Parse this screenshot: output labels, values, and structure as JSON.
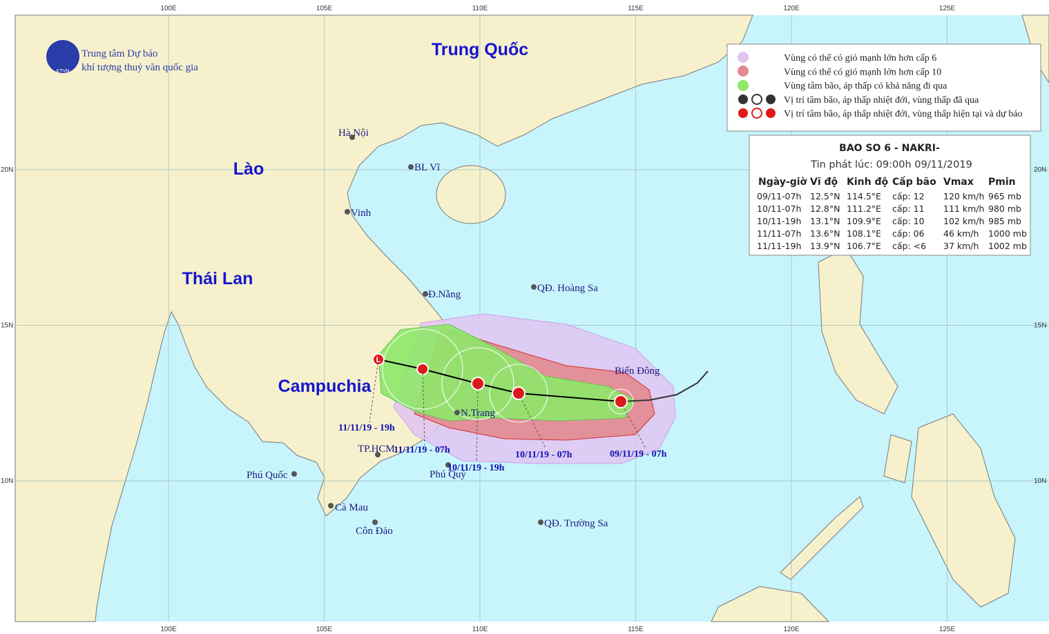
{
  "header": {
    "org_line1": "Trung tâm Dự báo",
    "org_line2": "khí tượng thuỷ văn quốc gia",
    "logo_text": "KTVN"
  },
  "grid": {
    "longitudes": [
      {
        "value": 100,
        "label": "100E"
      },
      {
        "value": 105,
        "label": "105E"
      },
      {
        "value": 110,
        "label": "110E"
      },
      {
        "value": 115,
        "label": "115E"
      },
      {
        "value": 120,
        "label": "120E"
      },
      {
        "value": 125,
        "label": "125E"
      }
    ],
    "latitudes": [
      {
        "value": 10,
        "label": "10N"
      },
      {
        "value": 15,
        "label": "15N"
      },
      {
        "value": 20,
        "label": "20N"
      }
    ]
  },
  "countries": [
    "Trung Quốc",
    "Lào",
    "Thái Lan",
    "Campuchia"
  ],
  "places": [
    "Hà Nội",
    "BL Vĩ",
    "Vinh",
    "Đ.Nẵng",
    "QĐ. Hoàng Sa",
    "N.Trang",
    "TP.HCM",
    "Phú Quốc",
    "Phú Quý",
    "Cà Mau",
    "Côn Đảo",
    "QĐ. Trường Sa",
    "Biển Đông"
  ],
  "track_labels": [
    "11/11/19 - 19h",
    "11/11/19 - 07h",
    "10/11/19 - 19h",
    "10/11/19 - 07h",
    "09/11/19 - 07h"
  ],
  "legend": [
    "Vùng có thể có gió mạnh lớn hơn cấp 6",
    "Vùng có thể có gió mạnh lớn hơn cấp 10",
    "Vùng tâm bão, áp thấp có khả năng đi qua",
    "Vị trí tâm bão, áp thấp nhiệt đới, vùng thấp đã qua",
    "Vị trí tâm bão, áp thấp nhiệt đới, vùng thấp hiện tại và dự báo"
  ],
  "bulletin": {
    "title": "BAO SO 6 - NAKRI-",
    "issued": "Tin phát lúc: 09:00h 09/11/2019",
    "columns": [
      "Ngày-giờ",
      "Vĩ độ",
      "Kinh độ",
      "Cấp bão",
      "Vmax",
      "Pmin"
    ],
    "rows": [
      [
        "09/11-07h",
        "12.5°N",
        "114.5°E",
        "cấp: 12",
        "120 km/h",
        "965 mb"
      ],
      [
        "10/11-07h",
        "12.8°N",
        "111.2°E",
        "cấp: 11",
        "111 km/h",
        "980 mb"
      ],
      [
        "10/11-19h",
        "13.1°N",
        "109.9°E",
        "cấp: 10",
        "102 km/h",
        "985 mb"
      ],
      [
        "11/11-07h",
        "13.6°N",
        "108.1°E",
        "cấp: 06",
        "46 km/h",
        "1000 mb"
      ],
      [
        "11/11-19h",
        "13.9°N",
        "106.7°E",
        "cấp: <6",
        "37 km/h",
        "1002 mb"
      ]
    ]
  }
}
